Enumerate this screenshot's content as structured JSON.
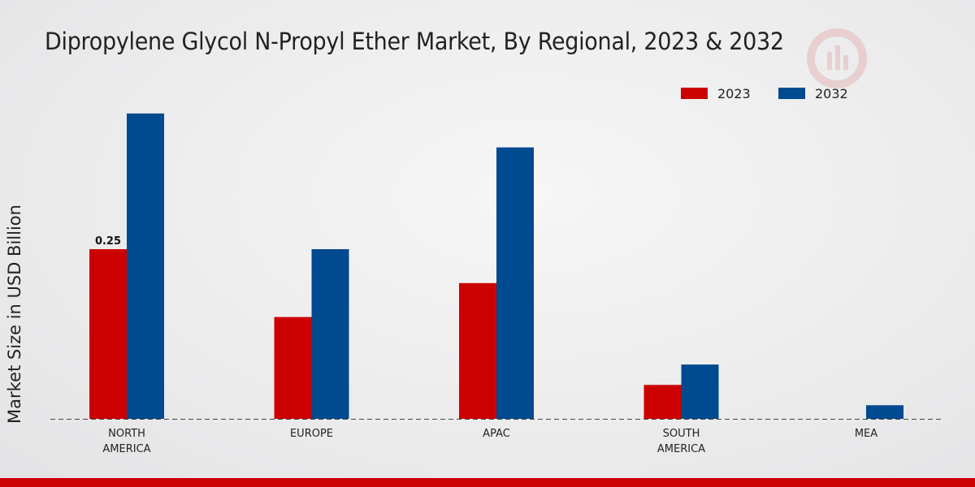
{
  "chart_data": {
    "type": "bar",
    "title": "Dipropylene Glycol N-Propyl Ether Market, By Regional, 2023 & 2032",
    "ylabel": "Market Size in USD Billion",
    "xlabel": "",
    "categories": [
      [
        "NORTH",
        "AMERICA"
      ],
      [
        "EUROPE"
      ],
      [
        "APAC"
      ],
      [
        "SOUTH",
        "AMERICA"
      ],
      [
        "MEA"
      ]
    ],
    "series": [
      {
        "name": "2023",
        "color": "#cc0000",
        "values": [
          0.25,
          0.15,
          0.2,
          0.05,
          0.0
        ]
      },
      {
        "name": "2032",
        "color": "#004a8f",
        "values": [
          0.45,
          0.25,
          0.4,
          0.08,
          0.02
        ]
      }
    ],
    "data_labels": [
      {
        "series": 0,
        "index": 0,
        "text": "0.25"
      }
    ],
    "ylim": [
      0,
      0.5
    ],
    "legend_position": "top-right",
    "grid": false
  }
}
